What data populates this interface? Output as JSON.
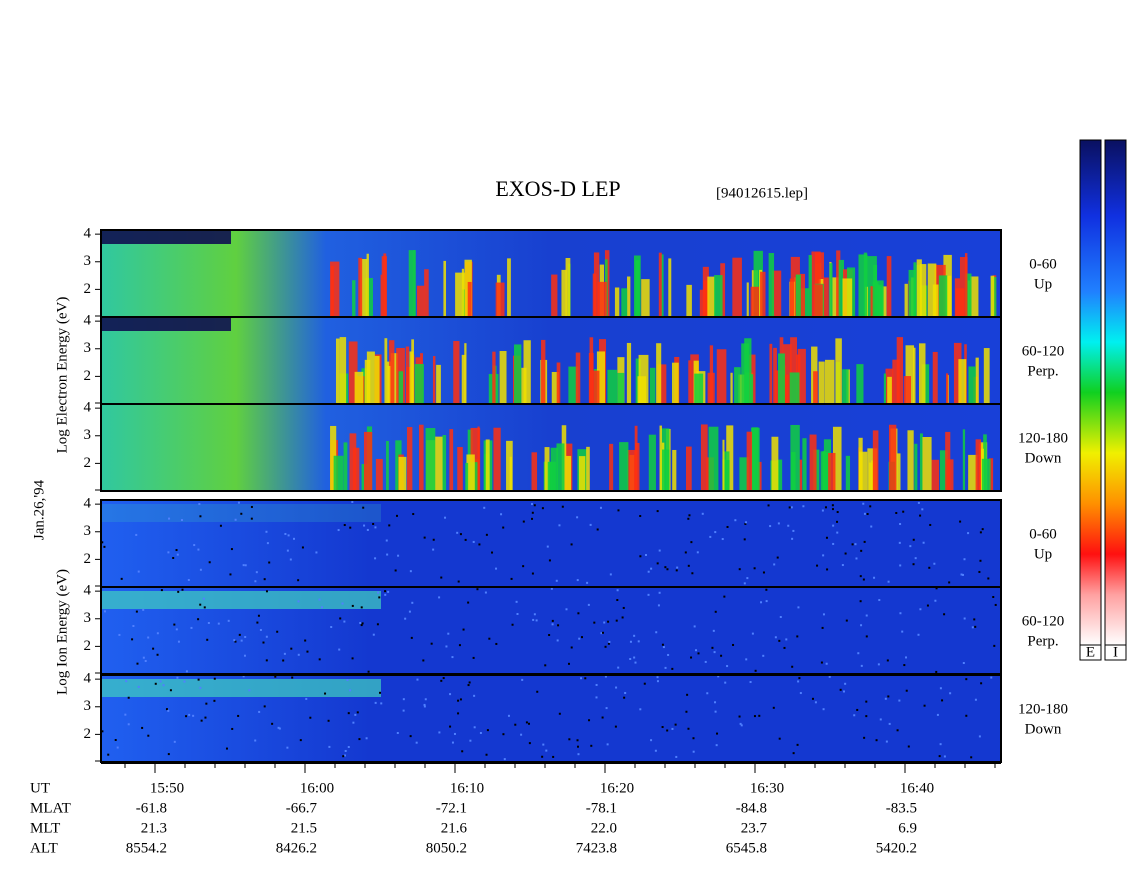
{
  "title": "EXOS-D LEP",
  "file": "[94012615.lep]",
  "date": "Jan.26,'94",
  "electron_axis_label": "Log Electron Energy (eV)",
  "ion_axis_label": "Log Ion Energy (eV)",
  "ylim": [
    1,
    4.15
  ],
  "yticks": [
    2,
    3,
    4
  ],
  "panels": [
    {
      "species": "electron",
      "label": [
        "0-60",
        "Up"
      ]
    },
    {
      "species": "electron",
      "label": [
        "60-120",
        "Perp."
      ]
    },
    {
      "species": "electron",
      "label": [
        "120-180",
        "Down"
      ]
    },
    {
      "species": "ion",
      "label": [
        "0-60",
        "Up"
      ]
    },
    {
      "species": "ion",
      "label": [
        "60-120",
        "Perp."
      ]
    },
    {
      "species": "ion",
      "label": [
        "120-180",
        "Down"
      ]
    }
  ],
  "colorbar_labels": [
    "E",
    "I"
  ],
  "time_table": [
    {
      "name": "UT",
      "values": [
        "15:50",
        "16:00",
        "16:10",
        "16:20",
        "16:30",
        "16:40"
      ]
    },
    {
      "name": "MLAT",
      "values": [
        "-61.8",
        "-66.7",
        "-72.1",
        "-78.1",
        "-84.8",
        "-83.5"
      ]
    },
    {
      "name": "MLT",
      "values": [
        "21.3",
        "21.5",
        "21.6",
        "22.0",
        "23.7",
        "6.9"
      ]
    },
    {
      "name": "ALT",
      "values": [
        "8554.2",
        "8426.2",
        "8050.2",
        "7423.8",
        "6545.8",
        "5420.2"
      ]
    }
  ]
}
